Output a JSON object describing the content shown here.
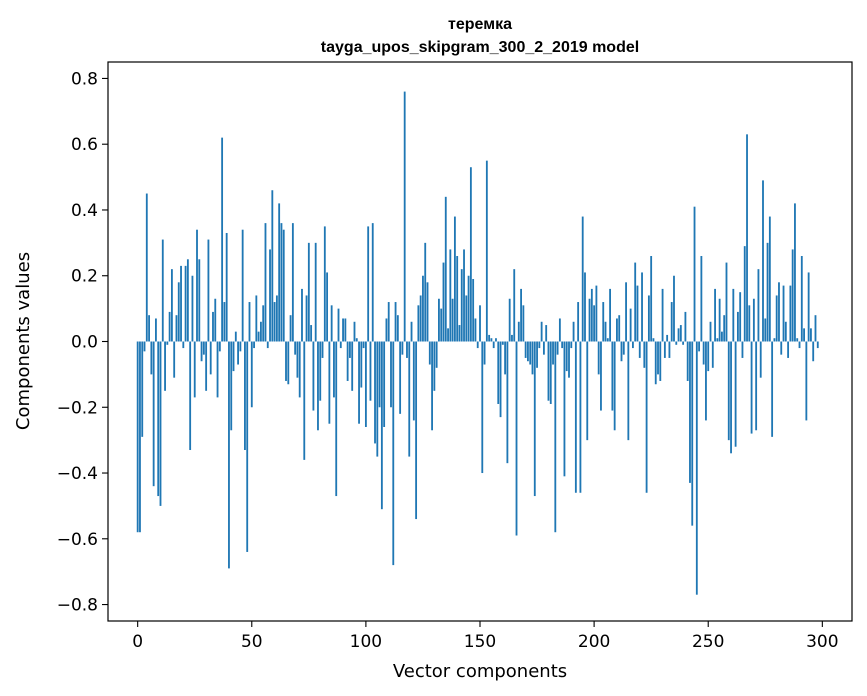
{
  "chart_data": {
    "type": "bar",
    "title": "теремка",
    "subtitle": "tayga_upos_skipgram_300_2_2019 model",
    "xlabel": "Vector components",
    "ylabel": "Components values",
    "xlim": [
      -13,
      313
    ],
    "ylim": [
      -0.85,
      0.85
    ],
    "xticks": [
      0,
      50,
      100,
      150,
      200,
      250,
      300
    ],
    "xtick_labels": [
      "0",
      "50",
      "100",
      "150",
      "200",
      "250",
      "300"
    ],
    "yticks": [
      0.8,
      0.6,
      0.4,
      0.2,
      0.0,
      -0.2,
      -0.4,
      -0.6,
      -0.8
    ],
    "ytick_labels": [
      "0.8",
      "0.6",
      "0.4",
      "0.2",
      "0.0",
      "−0.2",
      "−0.4",
      "−0.6",
      "−0.8"
    ],
    "bar_color": "#1f77b4",
    "values": [
      -0.58,
      -0.58,
      -0.29,
      -0.03,
      0.45,
      0.08,
      -0.1,
      -0.44,
      0.07,
      -0.47,
      -0.5,
      0.31,
      -0.15,
      -0.01,
      0.09,
      0.22,
      -0.11,
      0.08,
      0.18,
      0.23,
      -0.02,
      0.23,
      0.25,
      -0.33,
      0.2,
      -0.17,
      0.34,
      0.25,
      -0.06,
      -0.04,
      -0.15,
      0.31,
      -0.1,
      0.09,
      0.13,
      -0.17,
      -0.03,
      0.62,
      0.12,
      0.33,
      -0.69,
      -0.27,
      -0.09,
      0.03,
      -0.07,
      -0.03,
      0.34,
      -0.33,
      -0.64,
      0.12,
      -0.2,
      -0.02,
      0.14,
      0.03,
      0.06,
      0.11,
      0.36,
      -0.02,
      0.28,
      0.46,
      0.12,
      0.14,
      0.42,
      0.36,
      0.34,
      -0.12,
      -0.13,
      0.08,
      0.36,
      -0.04,
      -0.11,
      -0.17,
      0.16,
      -0.36,
      0.14,
      0.3,
      0.05,
      -0.21,
      0.3,
      -0.27,
      -0.18,
      -0.05,
      0.35,
      0.21,
      -0.25,
      0.11,
      -0.17,
      -0.47,
      0.1,
      -0.02,
      0.07,
      0.07,
      -0.12,
      -0.05,
      -0.15,
      0.06,
      0.01,
      -0.25,
      -0.14,
      -0.02,
      -0.26,
      0.35,
      -0.18,
      0.36,
      -0.31,
      -0.35,
      -0.2,
      -0.51,
      -0.26,
      0.07,
      0.12,
      -0.2,
      -0.68,
      0.12,
      0.08,
      -0.22,
      -0.04,
      0.76,
      -0.05,
      -0.35,
      0.06,
      -0.24,
      -0.54,
      0.11,
      0.14,
      0.2,
      0.3,
      0.18,
      -0.07,
      -0.27,
      -0.15,
      -0.08,
      0.13,
      0.1,
      0.24,
      0.44,
      0.04,
      0.28,
      0.13,
      0.38,
      0.26,
      0.05,
      0.22,
      0.28,
      0.14,
      0.2,
      0.53,
      0.19,
      0.07,
      -0.02,
      0.11,
      -0.4,
      -0.07,
      0.55,
      0.02,
      0.01,
      -0.02,
      0.01,
      -0.19,
      -0.23,
      -0.01,
      -0.1,
      -0.37,
      0.13,
      0.02,
      0.22,
      -0.59,
      0.06,
      0.16,
      0.11,
      -0.05,
      -0.06,
      -0.07,
      -0.1,
      -0.47,
      -0.08,
      -0.02,
      0.06,
      -0.04,
      0.05,
      -0.18,
      -0.19,
      -0.07,
      -0.58,
      -0.04,
      0.07,
      -0.02,
      -0.41,
      -0.09,
      -0.11,
      -0.02,
      0.06,
      -0.46,
      0.12,
      -0.46,
      0.38,
      0.21,
      -0.3,
      0.13,
      0.16,
      0.11,
      0.17,
      -0.1,
      -0.21,
      0.12,
      0.06,
      0.01,
      0.16,
      -0.21,
      -0.27,
      0.07,
      0.08,
      -0.06,
      -0.04,
      0.18,
      -0.3,
      0.1,
      -0.02,
      0.24,
      0.17,
      -0.05,
      0.21,
      -0.08,
      -0.46,
      0.14,
      0.26,
      0.01,
      -0.13,
      -0.1,
      -0.12,
      0.16,
      -0.05,
      0.02,
      -0.05,
      0.12,
      0.2,
      -0.01,
      0.04,
      0.05,
      -0.01,
      0.09,
      -0.12,
      -0.43,
      -0.56,
      0.41,
      -0.77,
      -0.03,
      0.26,
      -0.07,
      -0.24,
      -0.09,
      0.06,
      -0.08,
      0.16,
      0.01,
      0.13,
      0.03,
      0.08,
      0.24,
      -0.3,
      -0.34,
      0.16,
      -0.32,
      0.09,
      0.15,
      -0.05,
      0.29,
      0.63,
      0.11,
      -0.28,
      0.13,
      -0.27,
      0.22,
      -0.11,
      0.49,
      0.07,
      0.3,
      0.38,
      -0.29,
      0.01,
      0.14,
      0.18,
      -0.04,
      0.17,
      0.06,
      -0.05,
      0.17,
      0.28,
      0.42,
      0.01,
      -0.02,
      0.26,
      0.04,
      -0.24,
      0.21,
      0.04,
      -0.06,
      0.08,
      -0.02
    ]
  }
}
